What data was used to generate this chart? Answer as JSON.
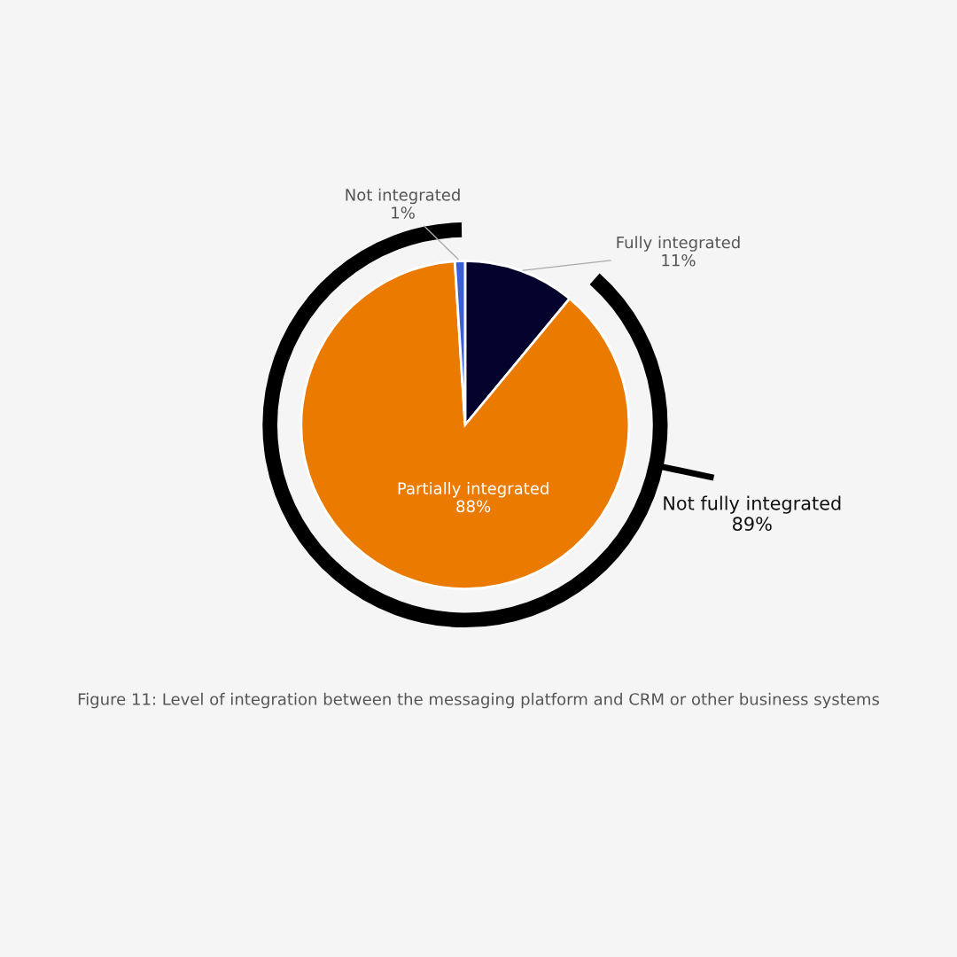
{
  "chart_data": {
    "type": "pie",
    "categories": [
      "Fully integrated",
      "Partially integrated",
      "Not integrated"
    ],
    "values": [
      11,
      88,
      1
    ],
    "value_labels": [
      "11%",
      "88%",
      "1%"
    ],
    "colors": [
      "#03032e",
      "#eb7a00",
      "#3a5fd8"
    ],
    "annotations": [
      "Not fully integrated\n89%",
      "Figure 11: Level of integration between the messaging platform and CRM or other business systems"
    ],
    "legend": false
  }
}
